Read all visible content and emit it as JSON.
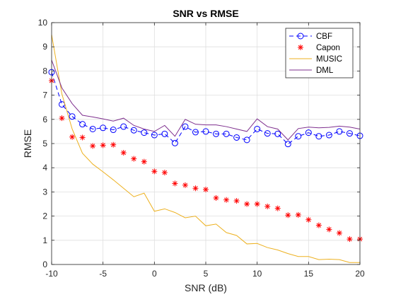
{
  "chart_data": {
    "type": "line",
    "title": "SNR vs RMSE",
    "xlabel": "SNR (dB)",
    "ylabel": "RMSE",
    "xlim": [
      -10,
      20
    ],
    "ylim": [
      0,
      10
    ],
    "xticks": [
      -10,
      -5,
      0,
      5,
      10,
      15,
      20
    ],
    "yticks": [
      0,
      1,
      2,
      3,
      4,
      5,
      6,
      7,
      8,
      9,
      10
    ],
    "grid": true,
    "legend_position": "top-right",
    "x": [
      -10,
      -9,
      -8,
      -7,
      -6,
      -5,
      -4,
      -3,
      -2,
      -1,
      0,
      1,
      2,
      3,
      4,
      5,
      6,
      7,
      8,
      9,
      10,
      11,
      12,
      13,
      14,
      15,
      16,
      17,
      18,
      19,
      20
    ],
    "series": [
      {
        "name": "CBF",
        "style": "circle-dashed",
        "color": "#0000ff",
        "values": [
          7.95,
          6.62,
          6.12,
          5.8,
          5.6,
          5.65,
          5.57,
          5.7,
          5.55,
          5.45,
          5.35,
          5.4,
          5.02,
          5.7,
          5.47,
          5.5,
          5.4,
          5.4,
          5.25,
          5.15,
          5.6,
          5.42,
          5.4,
          4.98,
          5.3,
          5.45,
          5.3,
          5.35,
          5.5,
          5.42,
          5.32
        ]
      },
      {
        "name": "Capon",
        "style": "asterisk",
        "color": "#ff0000",
        "values": [
          7.6,
          6.05,
          5.27,
          5.25,
          4.9,
          4.93,
          4.95,
          4.62,
          4.37,
          4.25,
          3.85,
          3.8,
          3.35,
          3.28,
          3.15,
          3.1,
          2.75,
          2.67,
          2.63,
          2.5,
          2.5,
          2.4,
          2.32,
          2.04,
          2.05,
          1.85,
          1.62,
          1.45,
          1.3,
          1.05,
          1.05
        ]
      },
      {
        "name": "MUSIC",
        "style": "line",
        "color": "#edb120",
        "values": [
          9.5,
          7.05,
          5.6,
          4.6,
          4.15,
          3.83,
          3.5,
          3.15,
          2.8,
          2.95,
          2.2,
          2.3,
          2.15,
          1.93,
          2.0,
          1.6,
          1.67,
          1.32,
          1.2,
          0.85,
          0.87,
          0.7,
          0.6,
          0.45,
          0.33,
          0.33,
          0.2,
          0.22,
          0.2,
          0.08,
          0.08
        ]
      },
      {
        "name": "DML",
        "style": "line",
        "color": "#7e2f8e",
        "values": [
          8.45,
          7.3,
          6.65,
          6.17,
          6.1,
          6.02,
          5.93,
          6.05,
          5.75,
          5.6,
          5.5,
          5.75,
          5.3,
          6.0,
          5.8,
          5.77,
          5.77,
          5.7,
          5.6,
          5.5,
          6.02,
          5.7,
          5.6,
          5.15,
          5.62,
          5.68,
          5.65,
          5.67,
          5.72,
          5.68,
          5.6
        ]
      }
    ]
  }
}
